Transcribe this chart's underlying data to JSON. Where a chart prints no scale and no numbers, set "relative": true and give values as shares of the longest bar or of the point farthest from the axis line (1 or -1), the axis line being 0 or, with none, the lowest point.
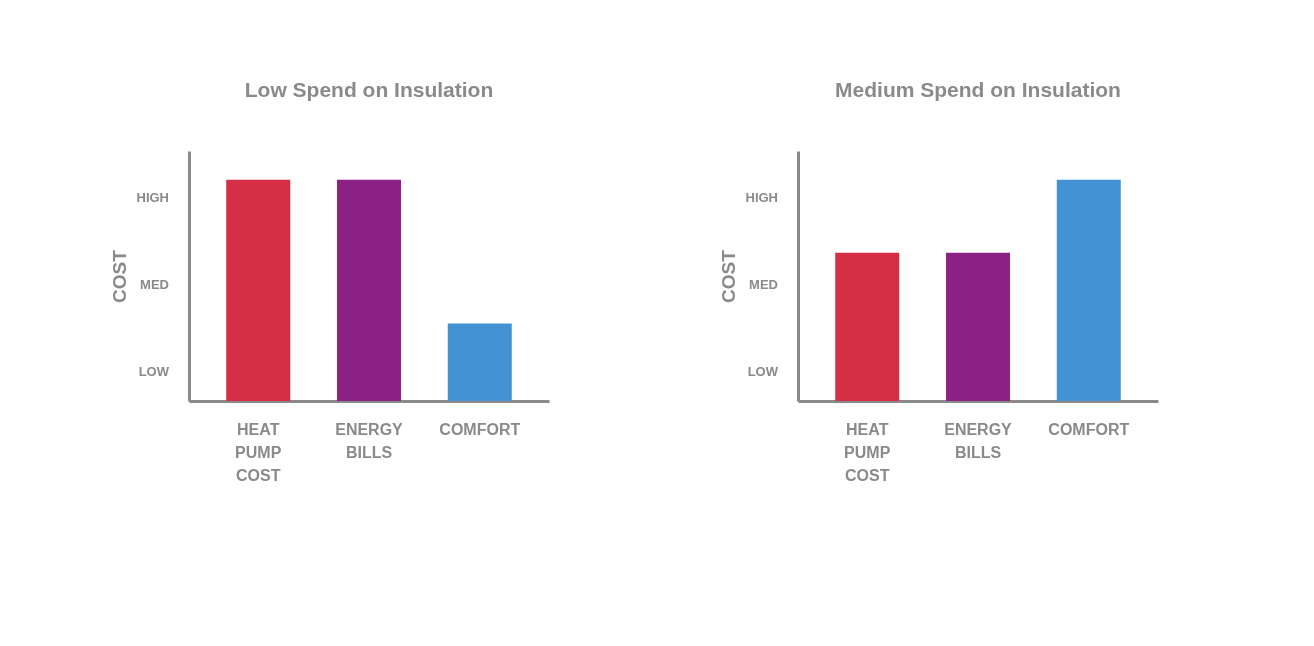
{
  "chart_data": [
    {
      "type": "bar",
      "title": "Low Spend on Insulation",
      "ylabel": "COST",
      "categories": [
        "HEAT PUMP COST",
        "ENERGY BILLS",
        "COMFORT"
      ],
      "values": [
        1,
        1,
        0.35
      ],
      "colors": [
        "#d42f45",
        "#8b2185",
        "#4392d4"
      ],
      "relative": true,
      "annotations": [
        "LOW",
        "MED",
        "HIGH"
      ],
      "grid": false,
      "legend": false
    },
    {
      "type": "bar",
      "title": "Medium Spend on Insulation",
      "ylabel": "COST",
      "categories": [
        "HEAT PUMP COST",
        "ENERGY BILLS",
        "COMFORT"
      ],
      "values": [
        0.67,
        0.67,
        1
      ],
      "colors": [
        "#d42f45",
        "#8b2185",
        "#4392d4"
      ],
      "relative": true,
      "annotations": [
        "LOW",
        "MED",
        "HIGH"
      ],
      "grid": false,
      "legend": false
    }
  ]
}
